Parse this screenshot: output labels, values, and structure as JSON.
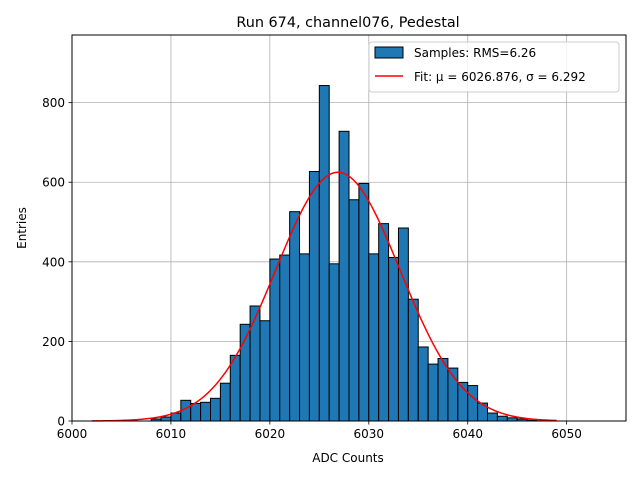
{
  "chart_data": {
    "type": "bar",
    "title": "Run 674, channel076, Pedestal",
    "xlabel": "ADC Counts",
    "ylabel": "Entries",
    "xlim": [
      6000,
      6056
    ],
    "ylim": [
      0,
      970
    ],
    "xticks": [
      6000,
      6010,
      6020,
      6030,
      6040,
      6050
    ],
    "yticks": [
      0,
      200,
      400,
      600,
      800
    ],
    "grid": true,
    "legend_position": "top-right",
    "histogram": {
      "name": "Samples: RMS=6.26",
      "color": "#1f77b4",
      "edge_color": "#000000",
      "bins": [
        {
          "x0": 6008,
          "x1": 6009,
          "value": 5
        },
        {
          "x0": 6009,
          "x1": 6010,
          "value": 10
        },
        {
          "x0": 6010,
          "x1": 6011,
          "value": 20
        },
        {
          "x0": 6011,
          "x1": 6012,
          "value": 52
        },
        {
          "x0": 6012,
          "x1": 6013,
          "value": 44
        },
        {
          "x0": 6013,
          "x1": 6014,
          "value": 47
        },
        {
          "x0": 6014,
          "x1": 6015,
          "value": 57
        },
        {
          "x0": 6015,
          "x1": 6016,
          "value": 95
        },
        {
          "x0": 6016,
          "x1": 6017,
          "value": 165
        },
        {
          "x0": 6017,
          "x1": 6018,
          "value": 243
        },
        {
          "x0": 6018,
          "x1": 6019,
          "value": 289
        },
        {
          "x0": 6019,
          "x1": 6020,
          "value": 252
        },
        {
          "x0": 6020,
          "x1": 6021,
          "value": 407
        },
        {
          "x0": 6021,
          "x1": 6022,
          "value": 417
        },
        {
          "x0": 6022,
          "x1": 6023,
          "value": 526
        },
        {
          "x0": 6023,
          "x1": 6024,
          "value": 420
        },
        {
          "x0": 6024,
          "x1": 6025,
          "value": 627
        },
        {
          "x0": 6025,
          "x1": 6026,
          "value": 843
        },
        {
          "x0": 6026,
          "x1": 6027,
          "value": 395
        },
        {
          "x0": 6027,
          "x1": 6028,
          "value": 728
        },
        {
          "x0": 6028,
          "x1": 6029,
          "value": 556
        },
        {
          "x0": 6029,
          "x1": 6030,
          "value": 597
        },
        {
          "x0": 6030,
          "x1": 6031,
          "value": 420
        },
        {
          "x0": 6031,
          "x1": 6032,
          "value": 496
        },
        {
          "x0": 6032,
          "x1": 6033,
          "value": 411
        },
        {
          "x0": 6033,
          "x1": 6034,
          "value": 485
        },
        {
          "x0": 6034,
          "x1": 6035,
          "value": 306
        },
        {
          "x0": 6035,
          "x1": 6036,
          "value": 186
        },
        {
          "x0": 6036,
          "x1": 6037,
          "value": 143
        },
        {
          "x0": 6037,
          "x1": 6038,
          "value": 157
        },
        {
          "x0": 6038,
          "x1": 6039,
          "value": 133
        },
        {
          "x0": 6039,
          "x1": 6040,
          "value": 97
        },
        {
          "x0": 6040,
          "x1": 6041,
          "value": 89
        },
        {
          "x0": 6041,
          "x1": 6042,
          "value": 45
        },
        {
          "x0": 6042,
          "x1": 6043,
          "value": 20
        },
        {
          "x0": 6043,
          "x1": 6044,
          "value": 12
        },
        {
          "x0": 6044,
          "x1": 6045,
          "value": 8
        },
        {
          "x0": 6045,
          "x1": 6046,
          "value": 5
        },
        {
          "x0": 6046,
          "x1": 6047,
          "value": 2
        }
      ]
    },
    "fit": {
      "name": "Fit: μ = 6026.876, σ = 6.292",
      "color": "#ff0000",
      "type": "gaussian",
      "mu": 6026.876,
      "sigma": 6.292,
      "amplitude": 625,
      "x_range": [
        6002,
        6049
      ]
    }
  }
}
